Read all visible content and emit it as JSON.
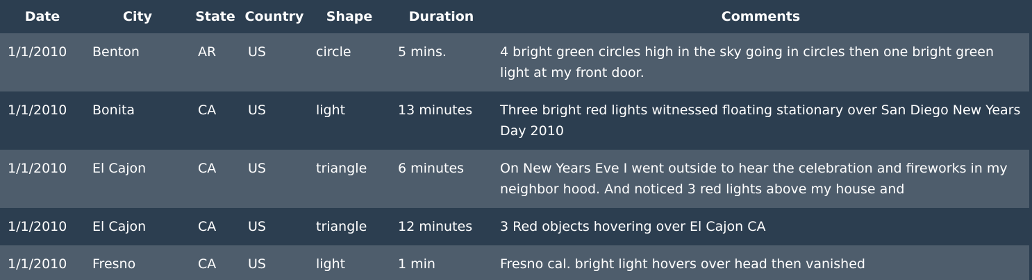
{
  "table": {
    "headers": [
      "Date",
      "City",
      "State",
      "Country",
      "Shape",
      "Duration",
      "Comments"
    ],
    "rows": [
      {
        "date": "1/1/2010",
        "city": "Benton",
        "state": "AR",
        "country": "US",
        "shape": "circle",
        "duration": "5 mins.",
        "comments": "4 bright green circles high in the sky going in circles then one bright green light at my front door."
      },
      {
        "date": "1/1/2010",
        "city": "Bonita",
        "state": "CA",
        "country": "US",
        "shape": "light",
        "duration": "13 minutes",
        "comments": "Three bright red lights witnessed floating stationary over San Diego New Years Day 2010"
      },
      {
        "date": "1/1/2010",
        "city": "El Cajon",
        "state": "CA",
        "country": "US",
        "shape": "triangle",
        "duration": "6 minutes",
        "comments": "On New Years Eve I went outside to hear the celebration and fireworks in my neighbor hood. And noticed 3 red lights above my house and"
      },
      {
        "date": "1/1/2010",
        "city": "El Cajon",
        "state": "CA",
        "country": "US",
        "shape": "triangle",
        "duration": "12 minutes",
        "comments": "3 Red objects hovering over El Cajon CA"
      },
      {
        "date": "1/1/2010",
        "city": "Fresno",
        "state": "CA",
        "country": "US",
        "shape": "light",
        "duration": "1 min",
        "comments": "Fresno cal. bright light hovers over head then vanished"
      }
    ]
  },
  "colors": {
    "background": "#2c3e50",
    "row_alt": "#4e5d6c",
    "text": "#ffffff"
  }
}
